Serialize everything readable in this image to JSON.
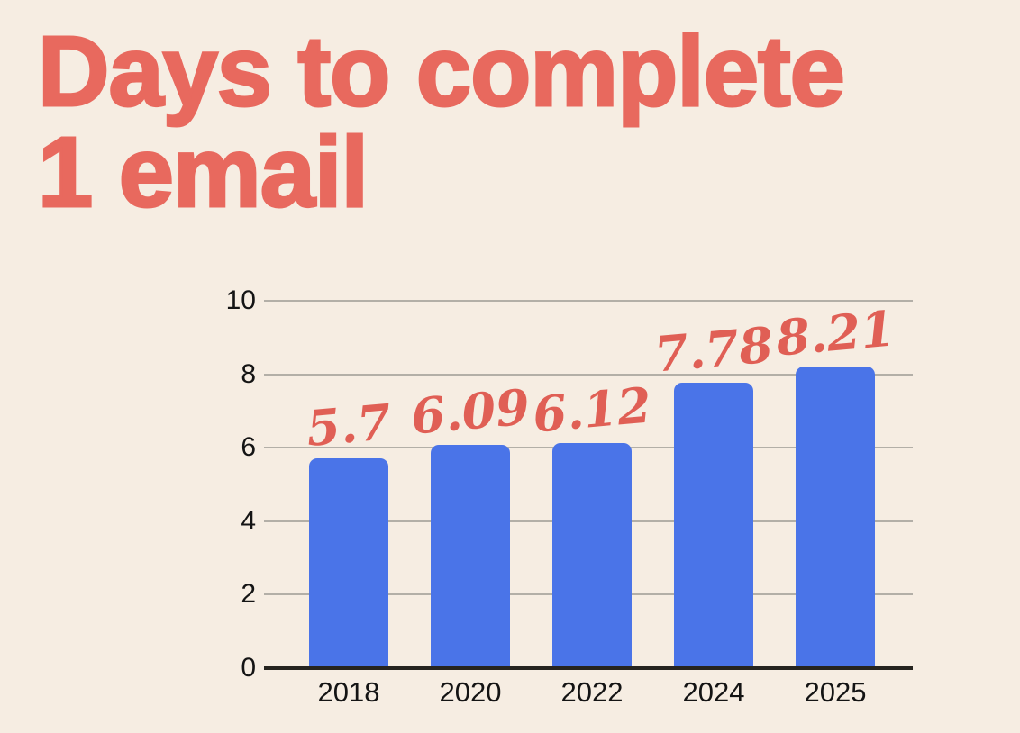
{
  "title": {
    "line1": "Days to complete",
    "line2": "1 email"
  },
  "chart_data": {
    "type": "bar",
    "title": "Days to complete 1 email",
    "categories": [
      "2018",
      "2020",
      "2022",
      "2024",
      "2025"
    ],
    "values": [
      5.7,
      6.09,
      6.12,
      7.78,
      8.21
    ],
    "value_labels": [
      "5.7",
      "6.09",
      "6.12",
      "7.78",
      "8.21"
    ],
    "yticks": [
      0,
      2,
      4,
      6,
      8,
      10
    ],
    "ylim": [
      0,
      10
    ],
    "xlabel": "",
    "ylabel": "",
    "grid": "horizontal",
    "legend": "none",
    "annotation_style": "handwritten-red"
  },
  "colors": {
    "background": "#f6ede2",
    "title_text": "#e8695e",
    "bar_fill": "#4a74e8",
    "annotation_text": "#e05f55",
    "gridline": "#b3afa7",
    "axis_line": "#26241f",
    "tick_label": "#141414"
  }
}
